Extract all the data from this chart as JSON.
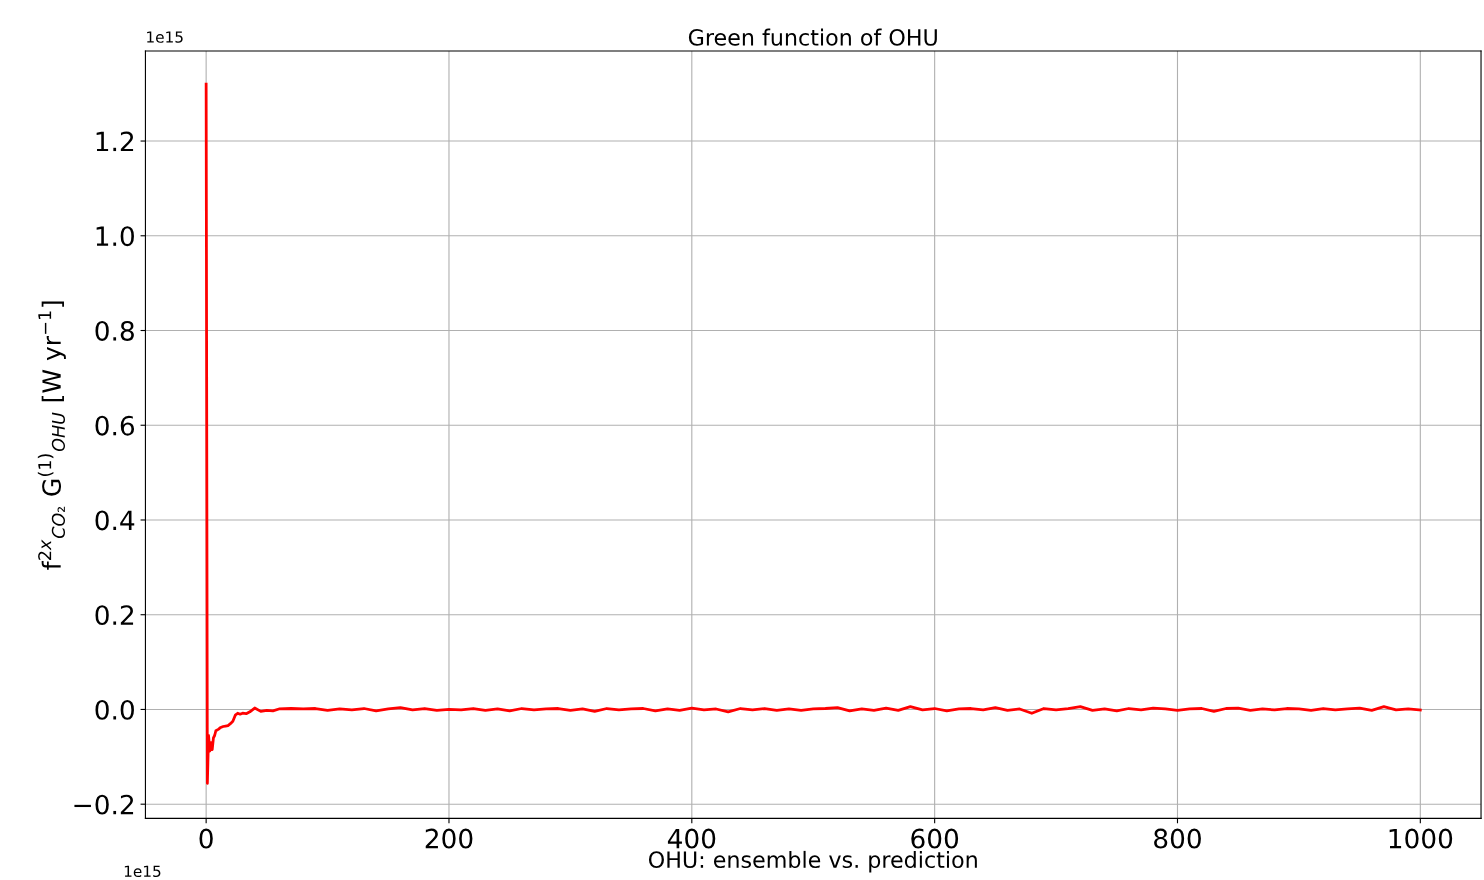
{
  "chart_data": {
    "type": "line",
    "title": "Green function of OHU",
    "xlabel": "OHU: ensemble vs. prediction",
    "ylabel": "f$^{2x}$$_{CO₂}$ G$^{(1)}$$_{OHU}$ [W yr$^{−1}$]",
    "annotations": [
      "1e15",
      "1e15"
    ],
    "x": [
      0,
      1,
      2,
      3,
      4,
      5,
      6,
      7,
      8,
      10,
      12,
      14,
      16,
      18,
      20,
      22,
      24,
      26,
      28,
      30,
      33,
      36,
      40,
      45,
      50,
      55,
      60,
      70,
      80,
      90,
      100,
      110,
      120,
      130,
      140,
      150,
      160,
      170,
      180,
      190,
      200,
      210,
      220,
      230,
      240,
      250,
      260,
      270,
      280,
      290,
      300,
      310,
      320,
      330,
      340,
      350,
      360,
      370,
      380,
      390,
      400,
      410,
      420,
      430,
      440,
      450,
      460,
      470,
      480,
      490,
      500,
      510,
      520,
      530,
      540,
      550,
      560,
      570,
      580,
      590,
      600,
      610,
      620,
      630,
      640,
      650,
      660,
      670,
      680,
      690,
      700,
      710,
      720,
      730,
      740,
      750,
      760,
      770,
      780,
      790,
      800,
      810,
      820,
      830,
      840,
      850,
      860,
      870,
      880,
      890,
      900,
      910,
      920,
      930,
      940,
      950,
      960,
      970,
      980,
      990,
      1000
    ],
    "series": [
      {
        "color": "#ff0000",
        "values": [
          1.32,
          -0.156,
          -0.055,
          -0.088,
          -0.07,
          -0.085,
          -0.06,
          -0.055,
          -0.045,
          -0.042,
          -0.038,
          -0.036,
          -0.035,
          -0.034,
          -0.03,
          -0.025,
          -0.012,
          -0.008,
          -0.01,
          -0.008,
          -0.009,
          -0.005,
          0.003,
          -0.004,
          -0.002,
          -0.003,
          0.001,
          0.002,
          0.001,
          0.002,
          -0.002,
          0.001,
          -0.001,
          0.002,
          -0.003,
          0.001,
          0.004,
          -0.001,
          0.002,
          -0.002,
          0.0,
          -0.001,
          0.002,
          -0.002,
          0.001,
          -0.003,
          0.002,
          -0.001,
          0.001,
          0.002,
          -0.002,
          0.001,
          -0.004,
          0.002,
          -0.001,
          0.001,
          0.002,
          -0.003,
          0.001,
          -0.002,
          0.003,
          -0.001,
          0.001,
          -0.005,
          0.002,
          -0.001,
          0.002,
          -0.002,
          0.001,
          -0.002,
          0.001,
          0.002,
          0.004,
          -0.003,
          0.001,
          -0.002,
          0.003,
          -0.002,
          0.006,
          -0.001,
          0.002,
          -0.003,
          0.001,
          0.002,
          -0.001,
          0.004,
          -0.002,
          0.001,
          -0.008,
          0.002,
          -0.001,
          0.002,
          0.006,
          -0.002,
          0.001,
          -0.003,
          0.002,
          -0.001,
          0.003,
          0.001,
          -0.002,
          0.001,
          0.002,
          -0.004,
          0.002,
          0.003,
          -0.002,
          0.001,
          -0.001,
          0.002,
          0.001,
          -0.002,
          0.002,
          -0.001,
          0.001,
          0.003,
          -0.002,
          0.006,
          -0.001,
          0.001,
          -0.001
        ]
      }
    ],
    "xlim": [
      -50,
      1050
    ],
    "ylim": [
      -0.23,
      1.39
    ],
    "xticks": [
      0,
      200,
      400,
      600,
      800,
      1000
    ],
    "yticks": [
      {
        "value": -0.2,
        "label": "−0.2"
      },
      {
        "value": 0.0,
        "label": "0.0"
      },
      {
        "value": 0.2,
        "label": "0.2"
      },
      {
        "value": 0.4,
        "label": "0.4"
      },
      {
        "value": 0.6,
        "label": "0.6"
      },
      {
        "value": 0.8,
        "label": "0.8"
      },
      {
        "value": 1.0,
        "label": "1.0"
      },
      {
        "value": 1.2,
        "label": "1.2"
      }
    ],
    "grid": true
  }
}
